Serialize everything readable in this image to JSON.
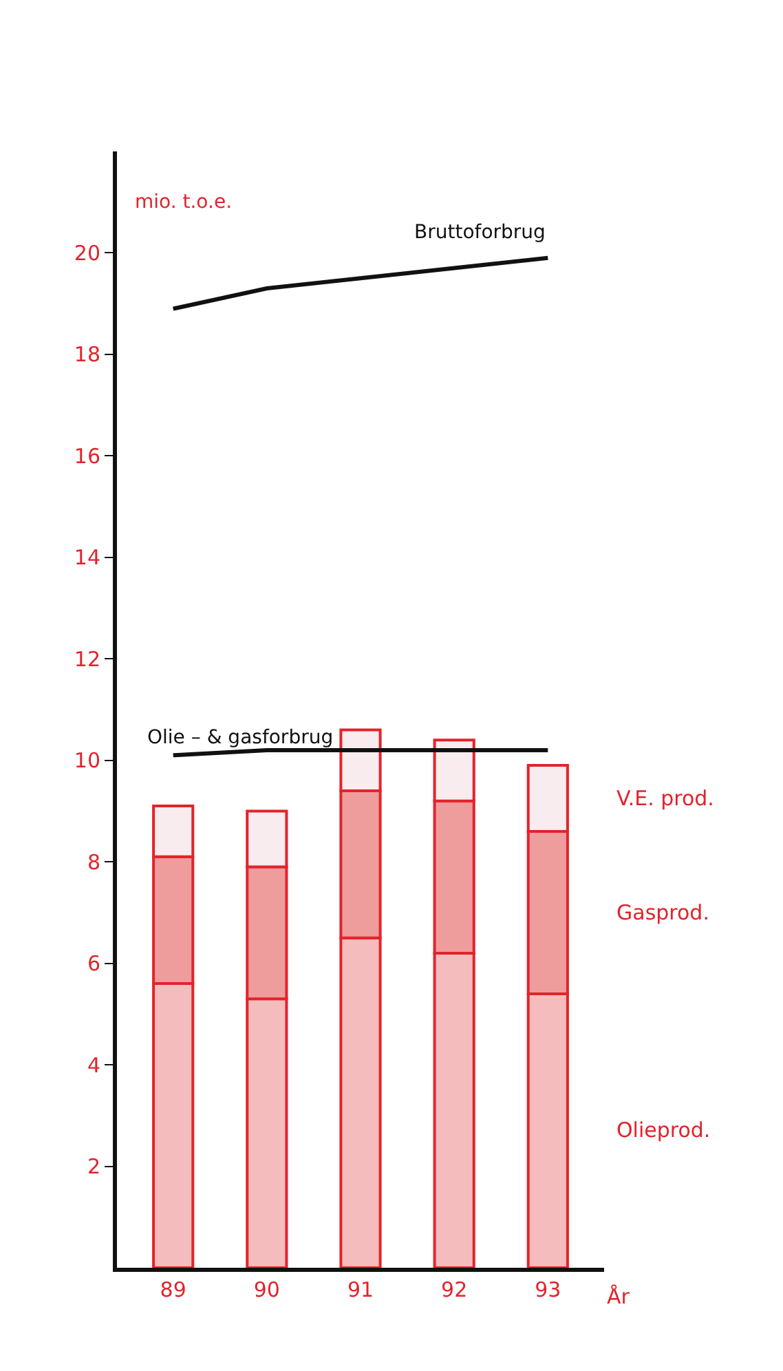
{
  "chart_data": {
    "type": "bar",
    "stacked": true,
    "ylabel": "mio. t.o.e.",
    "xlabel": "År",
    "categories": [
      "89",
      "90",
      "91",
      "92",
      "93"
    ],
    "series": [
      {
        "name": "Olieprod.",
        "color": "#f4bcbc",
        "values": [
          5.6,
          5.3,
          6.5,
          6.2,
          5.4
        ]
      },
      {
        "name": "Gasprod.",
        "color": "#ee9c9c",
        "values": [
          2.5,
          2.6,
          2.9,
          3.0,
          3.2
        ]
      },
      {
        "name": "V.E. prod.",
        "color": "#f8ecee",
        "values": [
          1.0,
          1.1,
          1.2,
          1.2,
          1.3
        ]
      },
      {
        "name": "Olie – & gasforbrug",
        "type": "line",
        "color": "#111111",
        "values": [
          10.1,
          10.2,
          10.2,
          10.2,
          10.2
        ]
      },
      {
        "name": "Bruttoforbrug",
        "type": "line",
        "color": "#111111",
        "values": [
          18.9,
          19.3,
          19.5,
          19.7,
          19.9
        ]
      }
    ],
    "ylim": [
      0,
      22
    ],
    "yticks": [
      2,
      4,
      6,
      8,
      10,
      12,
      14,
      16,
      18,
      20
    ],
    "legend": false,
    "marker": "none"
  }
}
